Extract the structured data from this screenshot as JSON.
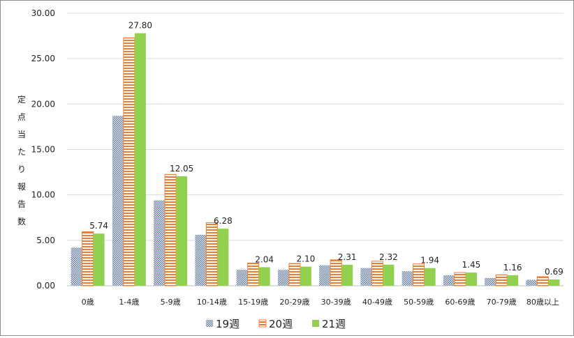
{
  "chart_data": {
    "type": "bar",
    "title": "",
    "ylabel": "定点当たり報告数",
    "xlabel": "",
    "ylim": [
      0,
      30
    ],
    "yticks": [
      "0.00",
      "5.00",
      "10.00",
      "15.00",
      "20.00",
      "25.00",
      "30.00"
    ],
    "grid": true,
    "legend_position": "bottom",
    "categories": [
      "0歳",
      "1-4歳",
      "5-9歳",
      "10-14歳",
      "15-19歳",
      "20-29歳",
      "30-39歳",
      "40-49歳",
      "50-59歳",
      "60-69歳",
      "70-79歳",
      "80歳以上"
    ],
    "series": [
      {
        "name": "19週",
        "values": [
          4.2,
          18.7,
          9.4,
          5.6,
          1.75,
          1.75,
          2.25,
          1.95,
          1.6,
          1.15,
          0.85,
          0.65
        ],
        "color": "#8497b0",
        "pattern": "checker"
      },
      {
        "name": "20週",
        "values": [
          5.95,
          27.3,
          12.25,
          6.95,
          2.5,
          2.45,
          2.85,
          2.7,
          2.4,
          1.45,
          1.2,
          1.0
        ],
        "color": "#ed7d31",
        "pattern": "horizontal-stripes"
      },
      {
        "name": "21週",
        "values": [
          5.74,
          27.8,
          12.05,
          6.28,
          2.04,
          2.1,
          2.31,
          2.32,
          1.94,
          1.45,
          1.16,
          0.69
        ],
        "color": "#92d050",
        "pattern": "solid"
      }
    ],
    "data_labels": {
      "series": "21週",
      "labels": [
        "5.74",
        "27.80",
        "12.05",
        "6.28",
        "2.04",
        "2.10",
        "2.31",
        "2.32",
        "1.94",
        "1.45",
        "1.16",
        "0.69"
      ]
    }
  }
}
